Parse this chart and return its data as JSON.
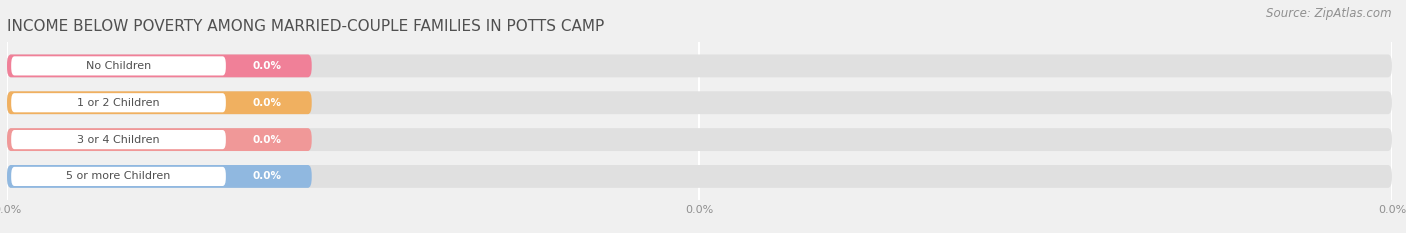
{
  "title": "INCOME BELOW POVERTY AMONG MARRIED-COUPLE FAMILIES IN POTTS CAMP",
  "source": "Source: ZipAtlas.com",
  "categories": [
    "No Children",
    "1 or 2 Children",
    "3 or 4 Children",
    "5 or more Children"
  ],
  "values": [
    0.0,
    0.0,
    0.0,
    0.0
  ],
  "bar_colors": [
    "#f08098",
    "#f0b060",
    "#f09898",
    "#90b8e0"
  ],
  "background_color": "#f0f0f0",
  "bar_bg_color": "#e0e0e0",
  "xlim": [
    0,
    100
  ],
  "title_fontsize": 11,
  "source_fontsize": 8.5,
  "tick_label_color": "#909090",
  "title_color": "#505050",
  "source_color": "#909090",
  "colored_bar_width": 22,
  "bar_height": 0.62
}
